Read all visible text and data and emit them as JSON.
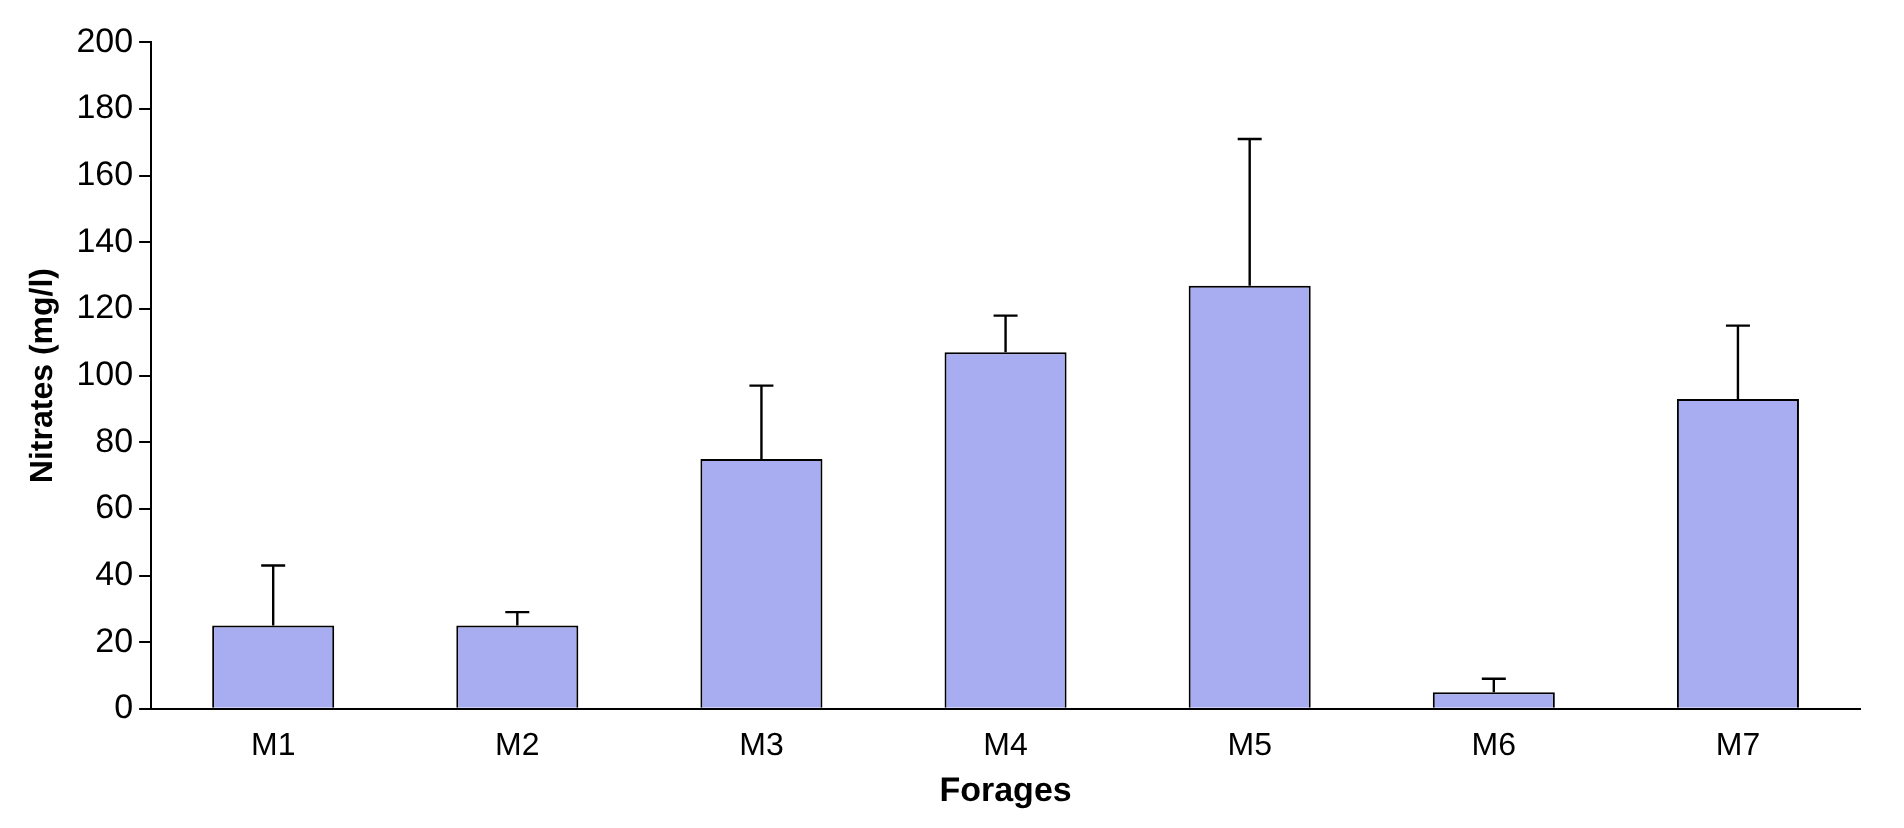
{
  "chart_data": {
    "type": "bar",
    "xlabel": "Forages",
    "ylabel": "Nitrates (mg/l)",
    "categories": [
      "M1",
      "M2",
      "M3",
      "M4",
      "M5",
      "M6",
      "M7"
    ],
    "values": [
      25,
      25,
      75,
      107,
      127,
      5,
      93
    ],
    "errors": [
      [
        25,
        43
      ],
      [
        25,
        29
      ],
      [
        75,
        97
      ],
      [
        107,
        118
      ],
      [
        127,
        171
      ],
      [
        5,
        9
      ],
      [
        93,
        115
      ]
    ],
    "color": "#a8acf0",
    "ylim": [
      0,
      200
    ],
    "yticks": [
      0,
      20,
      40,
      60,
      80,
      100,
      120,
      140,
      160,
      180,
      200
    ],
    "grid": false,
    "legend": false
  }
}
